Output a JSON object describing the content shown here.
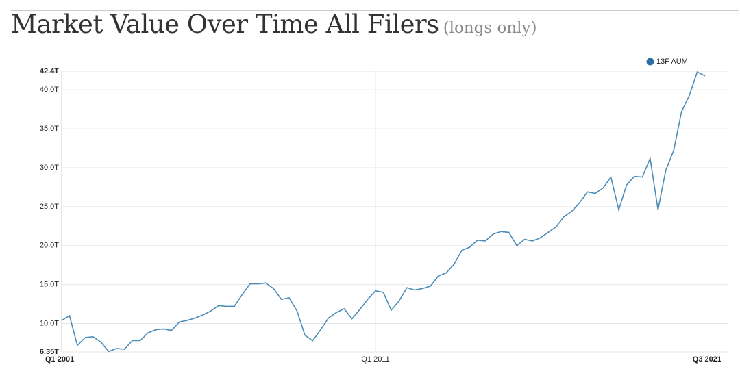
{
  "chart_data": {
    "type": "line",
    "title": "Market Value Over Time All Filers",
    "subtitle": "(longs only)",
    "categories": [
      "Q1 2001",
      null,
      null,
      null,
      null,
      null,
      null,
      null,
      null,
      null,
      null,
      null,
      null,
      null,
      null,
      null,
      null,
      null,
      null,
      null,
      null,
      null,
      null,
      null,
      null,
      null,
      null,
      null,
      null,
      null,
      null,
      null,
      null,
      null,
      null,
      null,
      null,
      null,
      null,
      null,
      "Q1 2011",
      null,
      null,
      null,
      null,
      null,
      null,
      null,
      null,
      null,
      null,
      null,
      null,
      null,
      null,
      null,
      null,
      null,
      null,
      null,
      null,
      null,
      null,
      null,
      null,
      null,
      null,
      null,
      null,
      null,
      null,
      null,
      null,
      null,
      null,
      null,
      null,
      null,
      null,
      null,
      null,
      null,
      "Q3 2021"
    ],
    "series": [
      {
        "name": "13F AUM",
        "color": "#4a8bb8",
        "values": [
          10.4,
          11.0,
          7.2,
          8.2,
          8.3,
          7.6,
          6.4,
          6.8,
          6.7,
          7.8,
          7.8,
          8.8,
          9.2,
          9.3,
          9.1,
          10.2,
          10.4,
          10.7,
          11.1,
          11.6,
          12.3,
          12.2,
          12.2,
          13.7,
          15.1,
          15.1,
          15.2,
          14.5,
          13.1,
          13.3,
          11.6,
          8.5,
          7.8,
          9.2,
          10.7,
          11.4,
          11.9,
          10.6,
          11.8,
          13.1,
          14.2,
          14.0,
          11.7,
          12.9,
          14.6,
          14.3,
          14.5,
          14.8,
          16.1,
          16.5,
          17.6,
          19.4,
          19.8,
          20.7,
          20.6,
          21.5,
          21.8,
          21.7,
          20.0,
          20.8,
          20.6,
          21.0,
          21.7,
          22.4,
          23.7,
          24.4,
          25.5,
          26.9,
          26.7,
          27.4,
          28.8,
          24.6,
          27.8,
          28.9,
          28.8,
          31.2,
          24.6,
          29.7,
          32.2,
          37.2,
          39.3,
          42.3,
          41.8
        ]
      }
    ],
    "legend_color": "#2e6fa5",
    "ylim": [
      6.35,
      42.4
    ],
    "yticks": [
      {
        "value": 6.35,
        "label": "6.35T"
      },
      {
        "value": 10,
        "label": "10.0T"
      },
      {
        "value": 15,
        "label": "15.0T"
      },
      {
        "value": 20,
        "label": "20.0T"
      },
      {
        "value": 25,
        "label": "25.0T"
      },
      {
        "value": 30,
        "label": "30.0T"
      },
      {
        "value": 35,
        "label": "35.0T"
      },
      {
        "value": 40,
        "label": "40.0T"
      },
      {
        "value": 42.4,
        "label": "42.4T"
      }
    ],
    "grid": true,
    "legend": "top-right"
  }
}
